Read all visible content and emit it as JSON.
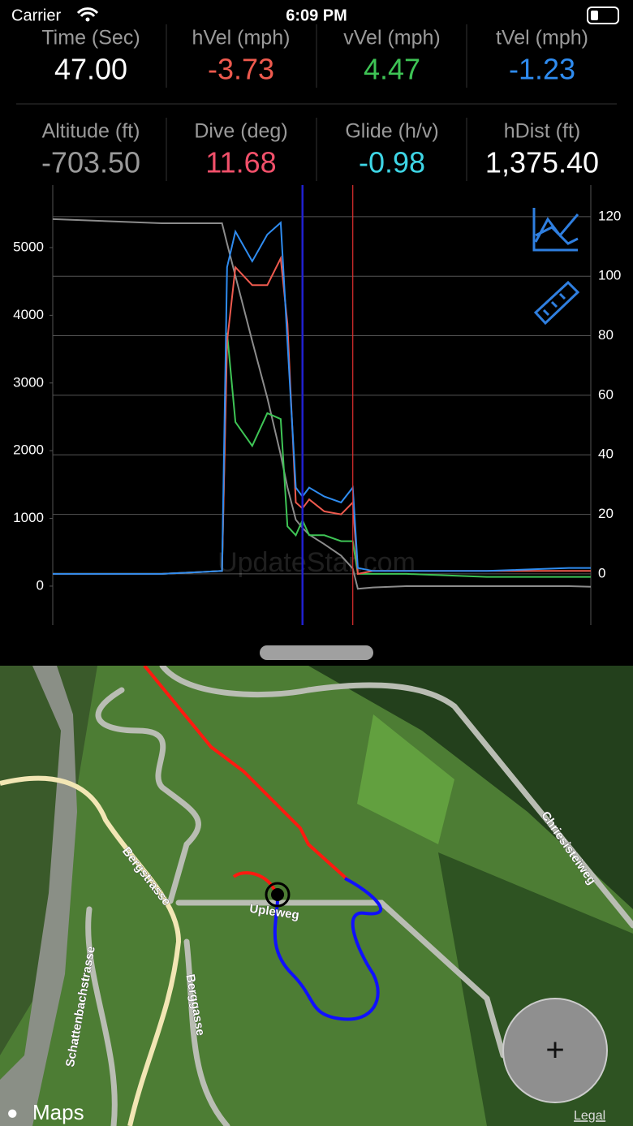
{
  "status_bar": {
    "carrier": "Carrier",
    "time": "6:09 PM"
  },
  "stats": [
    {
      "label": "Time (Sec)",
      "value": "47.00",
      "color": "#ffffff"
    },
    {
      "label": "hVel (mph)",
      "value": "-3.73",
      "color": "#ee5a4e"
    },
    {
      "label": "vVel (mph)",
      "value": "4.47",
      "color": "#3ec455"
    },
    {
      "label": "tVel (mph)",
      "value": "-1.23",
      "color": "#2f8cf0"
    },
    {
      "label": "Altitude (ft)",
      "value": "-703.50",
      "color": "#9a9a9a"
    },
    {
      "label": "Dive (deg)",
      "value": "11.68",
      "color": "#f2506a"
    },
    {
      "label": "Glide (h/v)",
      "value": "-0.98",
      "color": "#3ed6e6"
    },
    {
      "label": "hDist (ft)",
      "value": "1,375.40",
      "color": "#ffffff"
    }
  ],
  "chart": {
    "type": "line",
    "x": [
      -102,
      -37,
      -1,
      2,
      7,
      17,
      26,
      34,
      38,
      43,
      47,
      51,
      60,
      70,
      77,
      80,
      89,
      109,
      157,
      206,
      219
    ],
    "xlim": [
      -102,
      219
    ],
    "ylim": [
      -576,
      5923
    ],
    "yticks": [
      0,
      1000,
      2000,
      3000,
      4000,
      5000
    ],
    "y2lim": [
      -17.2,
      130.6
    ],
    "y2ticks": [
      0,
      20,
      40,
      60,
      80,
      100,
      120
    ],
    "grid": true,
    "series": [
      {
        "name": "Altitude",
        "color": "#8c8c8c",
        "axis": "y",
        "values": [
          5420,
          5360,
          5360,
          5060,
          4580,
          3620,
          2780,
          1940,
          1460,
          980,
          860,
          760,
          620,
          450,
          260,
          -40,
          -20,
          0,
          0,
          0,
          -10
        ]
      },
      {
        "name": "vVel",
        "color": "#3ec455",
        "axis": "y2",
        "values": [
          0,
          0,
          1,
          81,
          51,
          43,
          54,
          52,
          16,
          13,
          18,
          13,
          13,
          11,
          11,
          0,
          0,
          0,
          -1,
          -1,
          -1
        ]
      },
      {
        "name": "hVel",
        "color": "#ee5a4e",
        "axis": "y2",
        "values": [
          0,
          0,
          1,
          78,
          103,
          97,
          97,
          106,
          84,
          24,
          22,
          25,
          21,
          20,
          24,
          0,
          1,
          1,
          1,
          1,
          1
        ]
      },
      {
        "name": "tVel",
        "color": "#2f8cf0",
        "axis": "y2",
        "values": [
          0,
          0,
          1,
          103,
          115,
          105,
          114,
          118,
          78,
          29,
          26,
          29,
          26,
          24,
          29,
          2,
          1,
          1,
          1,
          2,
          2
        ]
      }
    ],
    "markers": [
      {
        "x": 47,
        "color": "#2020d0"
      },
      {
        "x": 77,
        "color": "#e03030"
      }
    ],
    "watermark": "UpdateStar.com"
  },
  "map": {
    "labels": [
      "Bergstrasse",
      "Chriesisteiweg",
      "Upleweg",
      "Schattenbachstrasse",
      "Berggasse"
    ],
    "logo": "Maps",
    "legal": "Legal",
    "zoom_button": "+"
  }
}
